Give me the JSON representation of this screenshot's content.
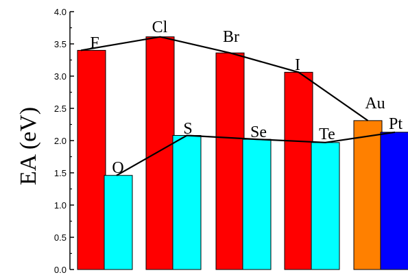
{
  "chart_data": {
    "type": "bar",
    "ylabel": "EA (eV)",
    "ylim": [
      0.0,
      4.0
    ],
    "ytick_labels": [
      "0.0",
      "0.5",
      "1.0",
      "1.5",
      "2.0",
      "2.5",
      "3.0",
      "3.5",
      "4.0"
    ],
    "grid": false,
    "bars": [
      {
        "label": "F",
        "value": 3.4,
        "color": "#ff0000"
      },
      {
        "label": "O",
        "value": 1.46,
        "color": "#00ffff"
      },
      {
        "label": "Cl",
        "value": 3.61,
        "color": "#ff0000"
      },
      {
        "label": "S",
        "value": 2.08,
        "color": "#00ffff"
      },
      {
        "label": "Br",
        "value": 3.36,
        "color": "#ff0000"
      },
      {
        "label": "Se",
        "value": 2.02,
        "color": "#00ffff"
      },
      {
        "label": "I",
        "value": 3.06,
        "color": "#ff0000"
      },
      {
        "label": "Te",
        "value": 1.97,
        "color": "#00ffff"
      },
      {
        "label": "Au",
        "value": 2.31,
        "color": "#ff8000"
      },
      {
        "label": "Pt",
        "value": 2.13,
        "color": "#0000ff"
      }
    ],
    "trend_lines": [
      {
        "points": [
          {
            "x": "F",
            "y": 3.4
          },
          {
            "x": "Cl",
            "y": 3.61
          },
          {
            "x": "Br",
            "y": 3.36
          },
          {
            "x": "I",
            "y": 3.06
          },
          {
            "x": "Au",
            "y": 2.31
          }
        ]
      },
      {
        "points": [
          {
            "x": "O",
            "y": 1.46
          },
          {
            "x": "S",
            "y": 2.08
          },
          {
            "x": "Se",
            "y": 2.02
          },
          {
            "x": "Te",
            "y": 1.97
          },
          {
            "x": "Pt",
            "y": 2.13
          }
        ]
      }
    ]
  }
}
